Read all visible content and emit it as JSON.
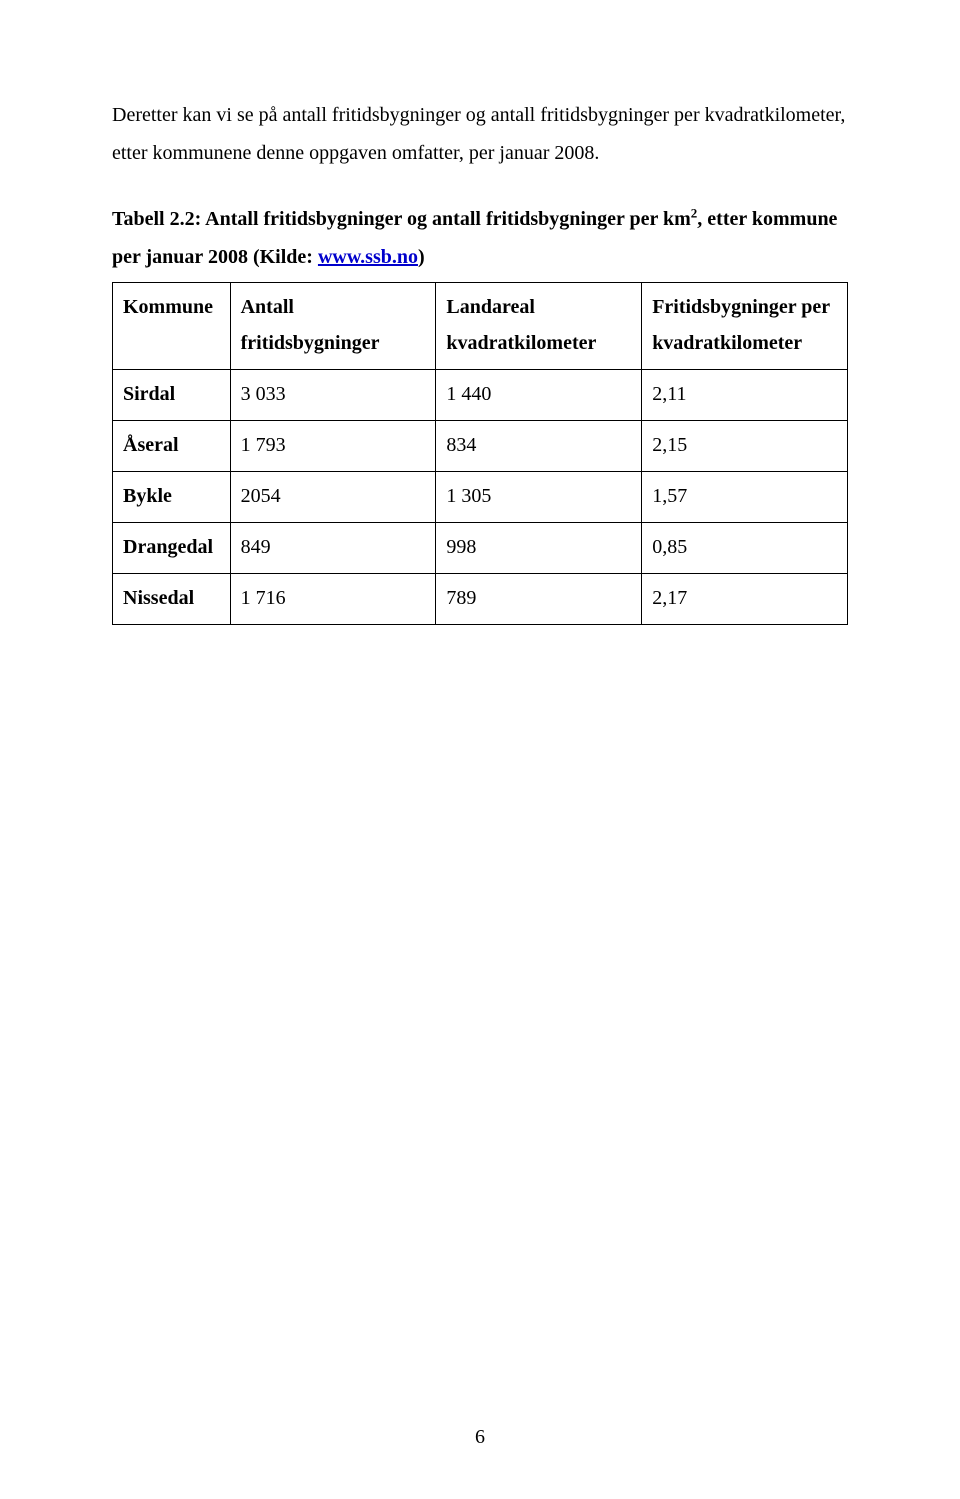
{
  "paragraph": "Deretter kan vi se på antall fritidsbygninger og antall fritidsbygninger per kvadratkilometer, etter kommunene denne oppgaven omfatter, per januar 2008.",
  "caption": {
    "prefix": "Tabell 2.2: Antall fritidsbygninger og antall fritidsbygninger per km",
    "sup": "2",
    "mid": ", etter kommune per januar 2008 (Kilde: ",
    "link": "www.ssb.no",
    "suffix": ")"
  },
  "table": {
    "headers": {
      "kommune": "Kommune",
      "antall_line1": "Antall",
      "antall_line2": "fritidsbygninger",
      "land_line1": "Landareal",
      "land_line2": "kvadratkilometer",
      "frit_line1": "Fritidsbygninger per",
      "frit_line2": "kvadratkilometer"
    },
    "rows": [
      {
        "kommune": "Sirdal",
        "antall": "3 033",
        "land": "1 440",
        "frit": "2,11"
      },
      {
        "kommune": "Åseral",
        "antall": "1 793",
        "land": "834",
        "frit": "2,15"
      },
      {
        "kommune": "Bykle",
        "antall": "2054",
        "land": "1 305",
        "frit": "1,57"
      },
      {
        "kommune": "Drangedal",
        "antall": "849",
        "land": "998",
        "frit": "0,85"
      },
      {
        "kommune": "Nissedal",
        "antall": "1 716",
        "land": "789",
        "frit": "2,17"
      }
    ]
  },
  "page_number": "6"
}
